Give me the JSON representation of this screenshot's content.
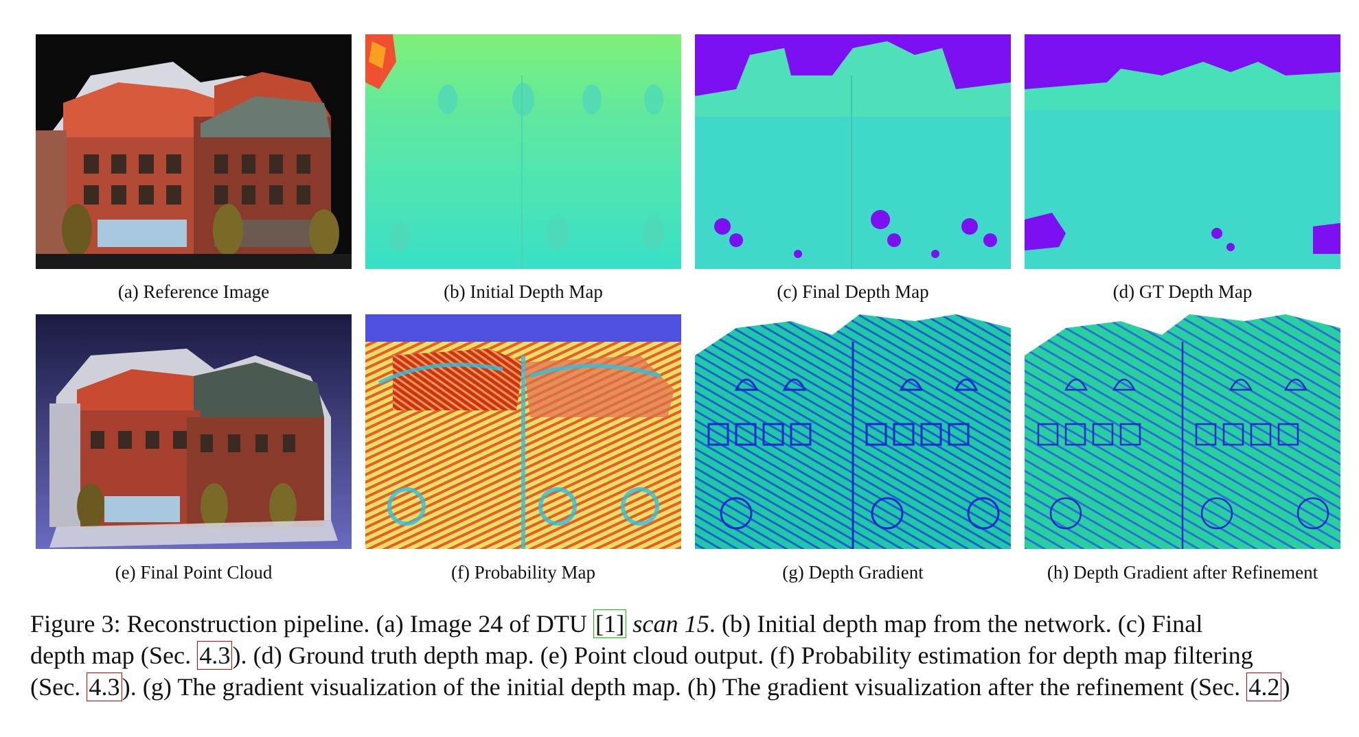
{
  "panels": [
    {
      "id": "a",
      "caption": "(a) Reference Image",
      "icon": "building-photo"
    },
    {
      "id": "b",
      "caption": "(b) Initial Depth Map",
      "icon": "depth-map"
    },
    {
      "id": "c",
      "caption": "(c) Final Depth Map",
      "icon": "depth-map"
    },
    {
      "id": "d",
      "caption": "(d) GT Depth Map",
      "icon": "depth-map"
    },
    {
      "id": "e",
      "caption": "(e) Final Point Cloud",
      "icon": "point-cloud"
    },
    {
      "id": "f",
      "caption": "(f) Probability Map",
      "icon": "probability-heatmap"
    },
    {
      "id": "g",
      "caption": "(g) Depth Gradient",
      "icon": "gradient-map"
    },
    {
      "id": "h",
      "caption": "(h) Depth Gradient after Refinement",
      "icon": "gradient-map"
    }
  ],
  "caption": {
    "l1_a": "Figure 3: Reconstruction pipeline. (a) Image 24 of DTU ",
    "l1_cite": "[1]",
    "l1_b": " ",
    "l1_em": "scan 15",
    "l1_c": ". (b) Initial depth map from the network. (c) Final",
    "l2_a": "depth map (Sec. ",
    "l2_ref": "4.3",
    "l2_b": "). (d) Ground truth depth map. (e) Point cloud output. (f) Probability estimation for depth map filtering",
    "l3_a": "(Sec. ",
    "l3_ref": "4.3",
    "l3_b": "). (g) The gradient visualization of the initial depth map. (h) The gradient visualization after the refinement (Sec. ",
    "l3_ref2": "4.2",
    "l3_c": ")"
  },
  "colors": {
    "purple_bg": "#7c10f0",
    "depth_cyan": "#40e0c8",
    "gradient_blue": "#1a3fd0",
    "gradient_green": "#20d8a8",
    "heat_red": "#e84020",
    "heat_yellow": "#f0e040",
    "brick": "#a04030",
    "roof": "#d05030",
    "ref_box": "#e00000",
    "cite_box": "#00cc00"
  }
}
